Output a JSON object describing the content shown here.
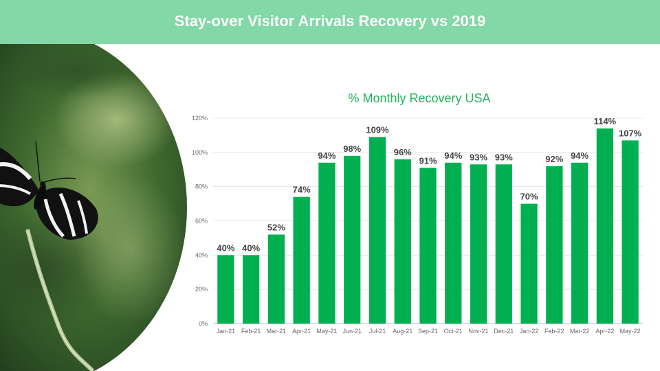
{
  "header": {
    "title": "Stay-over Visitor Arrivals Recovery vs 2019"
  },
  "photo": {
    "description_icon": "butterfly-photo"
  },
  "colors": {
    "header_bg": "#82d8a6",
    "bar": "#00b050",
    "title": "#22b35a"
  },
  "chart_data": {
    "type": "bar",
    "title": "% Monthly Recovery USA",
    "xlabel": "",
    "ylabel": "",
    "categories": [
      "Jan-21",
      "Feb-21",
      "Mar-21",
      "Apr-21",
      "May-21",
      "Jun-21",
      "Jul-21",
      "Aug-21",
      "Sep-21",
      "Oct-21",
      "Nov-21",
      "Dec-21",
      "Jan-22",
      "Feb-22",
      "Mar-22",
      "Apr-22",
      "May-22"
    ],
    "values": [
      40,
      40,
      52,
      74,
      94,
      98,
      109,
      96,
      91,
      94,
      93,
      93,
      70,
      92,
      94,
      114,
      107
    ],
    "data_labels": [
      "40%",
      "40%",
      "52%",
      "74%",
      "94%",
      "98%",
      "109%",
      "96%",
      "91%",
      "94%",
      "93%",
      "93%",
      "70%",
      "92%",
      "94%",
      "114%",
      "107%"
    ],
    "y_ticks": [
      0,
      20,
      40,
      60,
      80,
      100,
      120
    ],
    "y_tick_labels": [
      "0%",
      "20%",
      "40%",
      "60%",
      "80%",
      "100%",
      "120%"
    ],
    "ylim": [
      0,
      120
    ],
    "grid": true,
    "legend": "none"
  }
}
